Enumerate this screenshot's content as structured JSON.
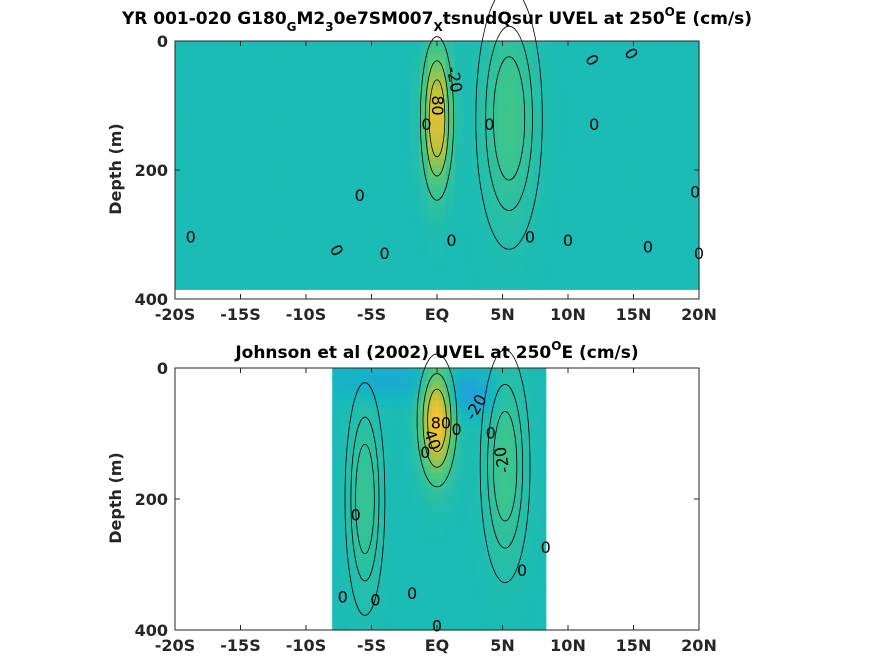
{
  "chart_data": [
    {
      "type": "heatmap",
      "title": "YR 001-020 G180GM23 0e7SM007Xtsnud Qsur UVEL at 250°E (cm/s)",
      "title_parts": {
        "p1": "YR 001-020 G180",
        "s1": "G",
        "p2": "M2",
        "s2": "3",
        "p3": "0e7SM007",
        "s3": "X",
        "p4": "tsnudQsur UVEL at 250",
        "sup": "O",
        "p5": "E (cm/s)"
      },
      "ylabel": "Depth (m)",
      "xlim": [
        -20,
        20
      ],
      "ylim": [
        400,
        0
      ],
      "x_ticks": [
        -20,
        -15,
        -10,
        -5,
        0,
        5,
        10,
        15,
        20
      ],
      "x_tick_labels": [
        "-20S",
        "-15S",
        "-10S",
        "-5S",
        "EQ",
        "5N",
        "10N",
        "15N",
        "20N"
      ],
      "y_ticks": [
        0,
        200,
        400
      ],
      "y_tick_labels": [
        "0",
        "200",
        "400"
      ],
      "data_extent": {
        "lat": [
          -20,
          20
        ],
        "depth": [
          0,
          385
        ]
      },
      "features": [
        {
          "kind": "jet",
          "lat": 0.0,
          "depth": 120,
          "lat_halfwidth": 1.0,
          "depth_halfwidth": 100,
          "max": 90
        },
        {
          "kind": "jet",
          "lat": 5.5,
          "depth": 120,
          "lat_halfwidth": 2.0,
          "depth_halfwidth": 160,
          "max": 25
        }
      ],
      "contour_labels": [
        {
          "text": "-20",
          "lat": 1.3,
          "depth": 60,
          "angle": 80
        },
        {
          "text": "80",
          "lat": 0.0,
          "depth": 100,
          "angle": 90
        },
        {
          "text": "0",
          "lat": -0.8,
          "depth": 130,
          "angle": 0
        },
        {
          "text": "0",
          "lat": 4.0,
          "depth": 130,
          "angle": 0
        },
        {
          "text": "0",
          "lat": 12.0,
          "depth": 130,
          "angle": 0
        },
        {
          "text": "0",
          "lat": 11.8,
          "depth": 30,
          "angle": 60
        },
        {
          "text": "0",
          "lat": 14.8,
          "depth": 20,
          "angle": 60
        },
        {
          "text": "0",
          "lat": -5.9,
          "depth": 240,
          "angle": 0
        },
        {
          "text": "0",
          "lat": 19.7,
          "depth": 235,
          "angle": 0
        },
        {
          "text": "0",
          "lat": -18.8,
          "depth": 305,
          "angle": 0
        },
        {
          "text": "0",
          "lat": -7.7,
          "depth": 325,
          "angle": 60
        },
        {
          "text": "0",
          "lat": -4.0,
          "depth": 330,
          "angle": 0
        },
        {
          "text": "0",
          "lat": 1.1,
          "depth": 310,
          "angle": 0
        },
        {
          "text": "0",
          "lat": 7.1,
          "depth": 305,
          "angle": 0
        },
        {
          "text": "0",
          "lat": 10.0,
          "depth": 310,
          "angle": 0
        },
        {
          "text": "0",
          "lat": 16.1,
          "depth": 320,
          "angle": 0
        },
        {
          "text": "0",
          "lat": 20.0,
          "depth": 330,
          "angle": 0
        }
      ]
    },
    {
      "type": "heatmap",
      "title": "Johnson et al (2002) UVEL at 250°E (cm/s)",
      "title_parts": {
        "p1": "Johnson et al (2002) UVEL at 250",
        "sup": "O",
        "p2": "E (cm/s)"
      },
      "ylabel": "Depth (m)",
      "xlim": [
        -20,
        20
      ],
      "ylim": [
        400,
        0
      ],
      "x_ticks": [
        -20,
        -15,
        -10,
        -5,
        0,
        5,
        10,
        15,
        20
      ],
      "x_tick_labels": [
        "-20S",
        "-15S",
        "-10S",
        "-5S",
        "EQ",
        "5N",
        "10N",
        "15N",
        "20N"
      ],
      "y_ticks": [
        0,
        200,
        400
      ],
      "y_tick_labels": [
        "0",
        "200",
        "400"
      ],
      "data_extent": {
        "lat": [
          -8,
          8.3
        ],
        "depth": [
          0,
          400
        ]
      },
      "features": [
        {
          "kind": "jet",
          "lat": 0.0,
          "depth": 80,
          "lat_halfwidth": 1.2,
          "depth_halfwidth": 80,
          "max": 100
        },
        {
          "kind": "jet",
          "lat": 5.2,
          "depth": 150,
          "lat_halfwidth": 1.5,
          "depth_halfwidth": 140,
          "max": 25
        },
        {
          "kind": "jet",
          "lat": -5.5,
          "depth": 200,
          "lat_halfwidth": 1.2,
          "depth_halfwidth": 140,
          "max": 20
        },
        {
          "kind": "westward",
          "lat": 2.5,
          "depth": 40,
          "lat_halfwidth": 2.0,
          "depth_halfwidth": 30,
          "max": -35
        },
        {
          "kind": "westward",
          "lat": -4.0,
          "depth": 20,
          "lat_halfwidth": 4.0,
          "depth_halfwidth": 25,
          "max": -25
        }
      ],
      "contour_labels": [
        {
          "text": "-20",
          "lat": 3.0,
          "depth": 60,
          "angle": -60
        },
        {
          "text": "80",
          "lat": 0.3,
          "depth": 85,
          "angle": 0
        },
        {
          "text": "40",
          "lat": -0.4,
          "depth": 110,
          "angle": 70
        },
        {
          "text": "0",
          "lat": -0.9,
          "depth": 130,
          "angle": 0
        },
        {
          "text": "0",
          "lat": 1.5,
          "depth": 95,
          "angle": 0
        },
        {
          "text": "0",
          "lat": 4.1,
          "depth": 100,
          "angle": 0
        },
        {
          "text": "-20",
          "lat": 5.0,
          "depth": 140,
          "angle": -100
        },
        {
          "text": "0",
          "lat": -6.2,
          "depth": 225,
          "angle": 0
        },
        {
          "text": "0",
          "lat": 8.3,
          "depth": 275,
          "angle": 0
        },
        {
          "text": "0",
          "lat": 6.5,
          "depth": 310,
          "angle": 0
        },
        {
          "text": "0",
          "lat": -7.2,
          "depth": 350,
          "angle": 0
        },
        {
          "text": "0",
          "lat": -4.7,
          "depth": 355,
          "angle": 0
        },
        {
          "text": "0",
          "lat": -1.9,
          "depth": 345,
          "angle": 0
        },
        {
          "text": "0",
          "lat": 0.0,
          "depth": 395,
          "angle": 0
        }
      ]
    }
  ]
}
